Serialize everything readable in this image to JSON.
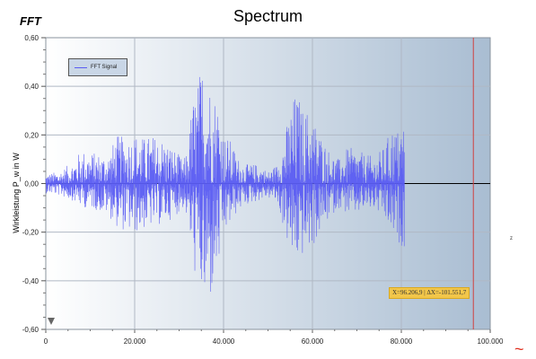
{
  "chart_data": {
    "type": "line",
    "title": "Spectrum",
    "subtitle": "FFT",
    "xlabel": "",
    "ylabel": "Wirkleistung P_w in W",
    "xlim": [
      0,
      100000
    ],
    "ylim": [
      -0.6,
      0.6
    ],
    "x_ticks": [
      "0",
      "20.000",
      "40.000",
      "60.000",
      "80.000",
      "100.000"
    ],
    "y_ticks": [
      "-0,60",
      "-0,40",
      "-0,20",
      "0,00",
      "0,20",
      "0,40",
      "0,60"
    ],
    "grid": true,
    "legend_position": "top-left",
    "series": [
      {
        "name": "FFT Signal",
        "color": "#5a5cf2",
        "envelope": {
          "x": [
            0,
            3000,
            6000,
            8000,
            10000,
            14000,
            16000,
            18000,
            20000,
            22000,
            24000,
            26000,
            28000,
            30000,
            31000,
            32000,
            33000,
            34000,
            35000,
            36000,
            37000,
            38000,
            39000,
            40000,
            41000,
            42000,
            43000,
            45000,
            48000,
            50000,
            52000,
            54000,
            55000,
            56000,
            57000,
            58000,
            59000,
            60000,
            62000,
            64000,
            66000,
            68000,
            70000,
            72000,
            74000,
            76000,
            78000,
            79000,
            80000,
            80700
          ],
          "max": [
            0.04,
            0.05,
            0.09,
            0.14,
            0.13,
            0.12,
            0.2,
            0.19,
            0.21,
            0.19,
            0.2,
            0.19,
            0.16,
            0.12,
            0.09,
            0.16,
            0.35,
            0.4,
            0.5,
            0.54,
            0.42,
            0.38,
            0.35,
            0.2,
            0.19,
            0.17,
            0.11,
            0.08,
            0.08,
            0.05,
            0.08,
            0.22,
            0.31,
            0.37,
            0.36,
            0.3,
            0.31,
            0.28,
            0.2,
            0.13,
            0.1,
            0.15,
            0.14,
            0.12,
            0.11,
            0.15,
            0.24,
            0.22,
            0.25,
            0.27
          ],
          "min": [
            -0.04,
            -0.05,
            -0.07,
            -0.1,
            -0.1,
            -0.13,
            -0.18,
            -0.2,
            -0.21,
            -0.19,
            -0.18,
            -0.17,
            -0.15,
            -0.12,
            -0.1,
            -0.16,
            -0.33,
            -0.42,
            -0.47,
            -0.55,
            -0.5,
            -0.42,
            -0.35,
            -0.22,
            -0.19,
            -0.16,
            -0.12,
            -0.09,
            -0.07,
            -0.06,
            -0.08,
            -0.22,
            -0.3,
            -0.34,
            -0.32,
            -0.3,
            -0.28,
            -0.27,
            -0.2,
            -0.14,
            -0.1,
            -0.13,
            -0.13,
            -0.11,
            -0.11,
            -0.15,
            -0.22,
            -0.25,
            -0.26,
            -0.26
          ]
        }
      }
    ],
    "cursor": {
      "x": 96206.9,
      "color": "#d04040",
      "label": "X=96.206,9 | ΔX=-101.551,7"
    },
    "colors": {
      "plot_bg_left": "#ffffff",
      "plot_bg_right": "#a9bdd2",
      "grid": "#b0b8c4",
      "zero_line": "#000000",
      "accent": "#e03020"
    }
  },
  "ui": {
    "stray_mark": "z",
    "tilde_glyph": "~"
  }
}
